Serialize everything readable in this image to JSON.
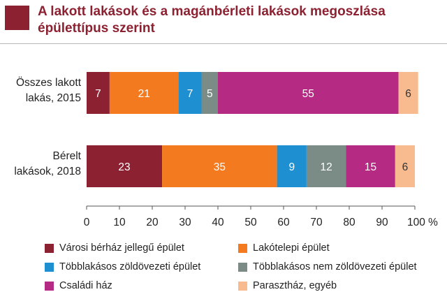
{
  "title": "A lakott lakások és a magánbérleti lakások megoszlása épülettípus szerint",
  "chart_data": {
    "type": "bar",
    "orientation": "horizontal",
    "stacked": true,
    "categories": [
      "Összes lakott lakás, 2015",
      "Bérelt lakások, 2018"
    ],
    "category_lines": [
      [
        "Összes lakott",
        "lakás, 2015"
      ],
      [
        "Bérelt",
        "lakások, 2018"
      ]
    ],
    "series": [
      {
        "name": "Városi bérház jellegű épület",
        "color": "#8b2131",
        "values": [
          7,
          23
        ],
        "label_color": "#ffffff"
      },
      {
        "name": "Lakótelepi épület",
        "color": "#f47a1f",
        "values": [
          21,
          35
        ],
        "label_color": "#ffffff"
      },
      {
        "name": "Többlakásos zöldövezeti épület",
        "color": "#1e8fd0",
        "values": [
          7,
          9
        ],
        "label_color": "#ffffff"
      },
      {
        "name": "Többlakásos nem zöldövezeti épület",
        "color": "#7b8c86",
        "values": [
          5,
          12
        ],
        "label_color": "#ffffff"
      },
      {
        "name": "Családi ház",
        "color": "#b52a82",
        "values": [
          55,
          15
        ],
        "label_color": "#ffffff"
      },
      {
        "name": "Parasztház, egyéb",
        "color": "#f8bb90",
        "values": [
          6,
          6
        ],
        "label_color": "#333333"
      }
    ],
    "xlim": [
      0,
      100
    ],
    "xticks": [
      0,
      10,
      20,
      30,
      40,
      50,
      60,
      70,
      80,
      90,
      100
    ],
    "xunit": "%",
    "grid": false,
    "legend_position": "bottom"
  }
}
